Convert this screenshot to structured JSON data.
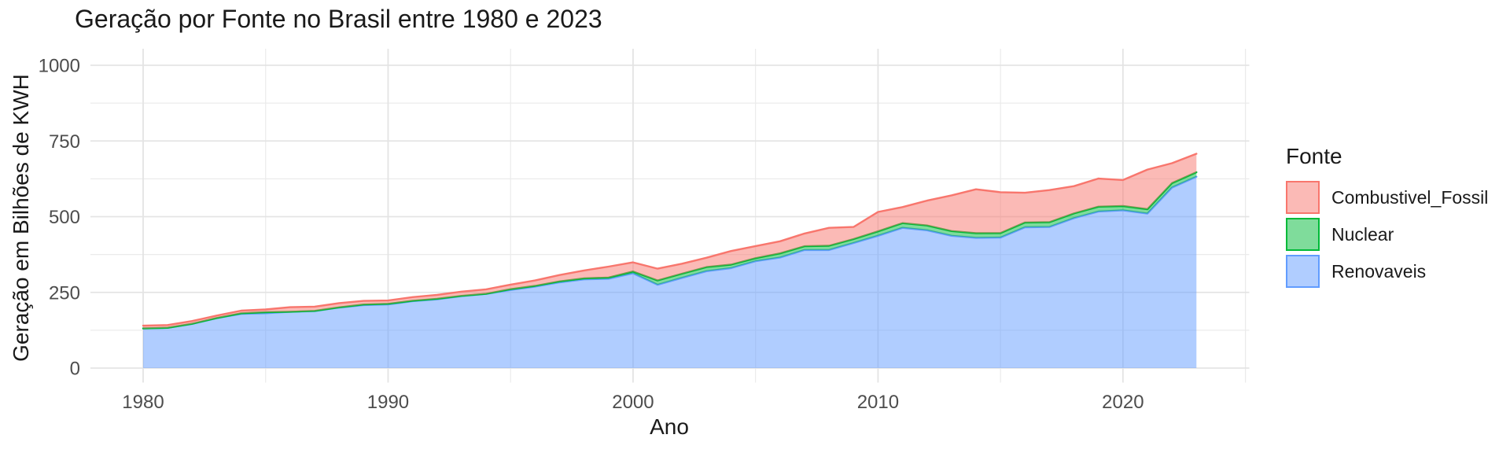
{
  "chart_data": {
    "type": "area",
    "stacked": true,
    "title": "Geração por Fonte no Brasil entre 1980 e 2023",
    "xlabel": "Ano",
    "ylabel": "Geração em Bilhões de KWH",
    "legend_title": "Fonte",
    "legend_position": "right",
    "grid": true,
    "fill_alpha": 0.5,
    "x": [
      1980,
      1981,
      1982,
      1983,
      1984,
      1985,
      1986,
      1987,
      1988,
      1989,
      1990,
      1991,
      1992,
      1993,
      1994,
      1995,
      1996,
      1997,
      1998,
      1999,
      2000,
      2001,
      2002,
      2003,
      2004,
      2005,
      2006,
      2007,
      2008,
      2009,
      2010,
      2011,
      2012,
      2013,
      2014,
      2015,
      2016,
      2017,
      2018,
      2019,
      2020,
      2021,
      2022,
      2023
    ],
    "series": [
      {
        "name": "Combustivel_Fossil",
        "color": "#F8766D",
        "values": [
          9,
          9,
          9,
          8,
          9,
          9,
          15,
          14,
          14,
          12,
          11,
          12,
          13,
          14,
          15,
          15,
          18,
          21,
          26,
          36,
          30,
          39,
          33,
          31,
          45,
          40,
          40,
          42,
          59,
          40,
          64,
          53,
          82,
          118,
          145,
          135,
          98,
          106,
          90,
          93,
          86,
          131,
          66,
          61
        ]
      },
      {
        "name": "Nuclear",
        "color": "#00BA38",
        "values": [
          0,
          0,
          0.2,
          0.2,
          1.7,
          3.4,
          0.1,
          0.9,
          0.6,
          1.8,
          2.2,
          1.4,
          1.8,
          0.4,
          0.1,
          2.5,
          2.4,
          3.2,
          3.3,
          4,
          6,
          14.3,
          13.8,
          13.4,
          11.6,
          9.9,
          13.8,
          12.3,
          14,
          13,
          14.5,
          15.7,
          16,
          15.4,
          15.4,
          14.7,
          15.9,
          15.7,
          15.7,
          16.1,
          14.1,
          14.7,
          14.6,
          14.8
        ]
      },
      {
        "name": "Renovaveis",
        "color": "#619CFF",
        "values": [
          131,
          133,
          146,
          165,
          179,
          181,
          186,
          188,
          200,
          208,
          210,
          221,
          227,
          238,
          245,
          258,
          269,
          283,
          293,
          295,
          313,
          275,
          298,
          320,
          330,
          353,
          365,
          390,
          390,
          413,
          437,
          463,
          455,
          437,
          430,
          431,
          465,
          466,
          495,
          517,
          521,
          510,
          596,
          632
        ]
      }
    ],
    "stack_order_bottom_to_top": [
      "Renovaveis",
      "Nuclear",
      "Combustivel_Fossil"
    ],
    "x_ticks": [
      1980,
      1990,
      2000,
      2010,
      2020
    ],
    "y_ticks": [
      0,
      250,
      500,
      750,
      1000
    ],
    "x_minor_ticks": [
      1985,
      1995,
      2005,
      2015,
      2025
    ],
    "y_minor_ticks": [
      125,
      375,
      625,
      875
    ],
    "xlim": [
      1977.85,
      2025.15
    ],
    "ylim": [
      -52,
      1054
    ],
    "axis_text_color": "#4d4d4d",
    "grid_major_color": "#e4e4e4",
    "grid_minor_color": "#ebebeb"
  }
}
